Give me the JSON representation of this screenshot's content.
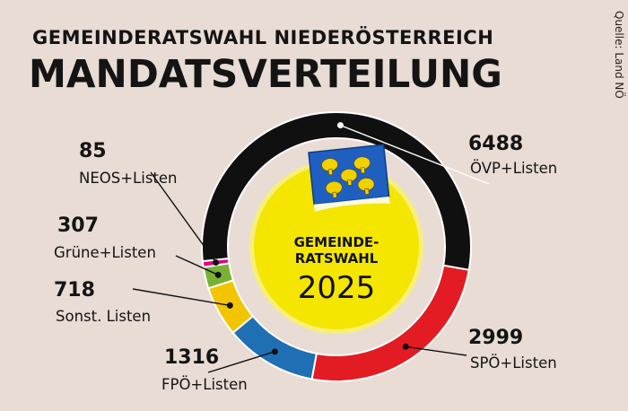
{
  "header": {
    "kicker": "GEMEINDERATSWAHL NIEDERÖSTERREICH",
    "title": "MANDATSVERTEILUNG",
    "source": "Quelle: Land NÖ"
  },
  "center_badge": {
    "line1": "GEMEINDE-",
    "line2": "RATSWAHL",
    "year": "2025"
  },
  "chart_data": {
    "type": "pie",
    "title": "MANDATSVERTEILUNG",
    "subtitle": "GEMEINDERATSWAHL NIEDERÖSTERREICH",
    "style": "donut",
    "series": [
      {
        "name": "ÖVP+Listen",
        "value": 6488,
        "value_label": "6488",
        "color": "#101010"
      },
      {
        "name": "SPÖ+Listen",
        "value": 2999,
        "value_label": "2999",
        "color": "#e31b23"
      },
      {
        "name": "FPÖ+Listen",
        "value": 1316,
        "value_label": "1316",
        "color": "#1f6fb5"
      },
      {
        "name": "Sonst. Listen",
        "value": 718,
        "value_label": "718",
        "color": "#f2c500"
      },
      {
        "name": "Grüne+Listen",
        "value": 307,
        "value_label": "307",
        "color": "#7ab135"
      },
      {
        "name": "NEOS+Listen",
        "value": 85,
        "value_label": "85",
        "color": "#e6007e"
      }
    ]
  },
  "colors": {
    "background": "#e8dcd5",
    "badge": "#f4e600",
    "badge_ring": "#f7ef7a",
    "flag_blue": "#1f5fc0",
    "flag_yellow": "#f2d100"
  },
  "icons": [
    "lower-austria-flag-icon"
  ]
}
